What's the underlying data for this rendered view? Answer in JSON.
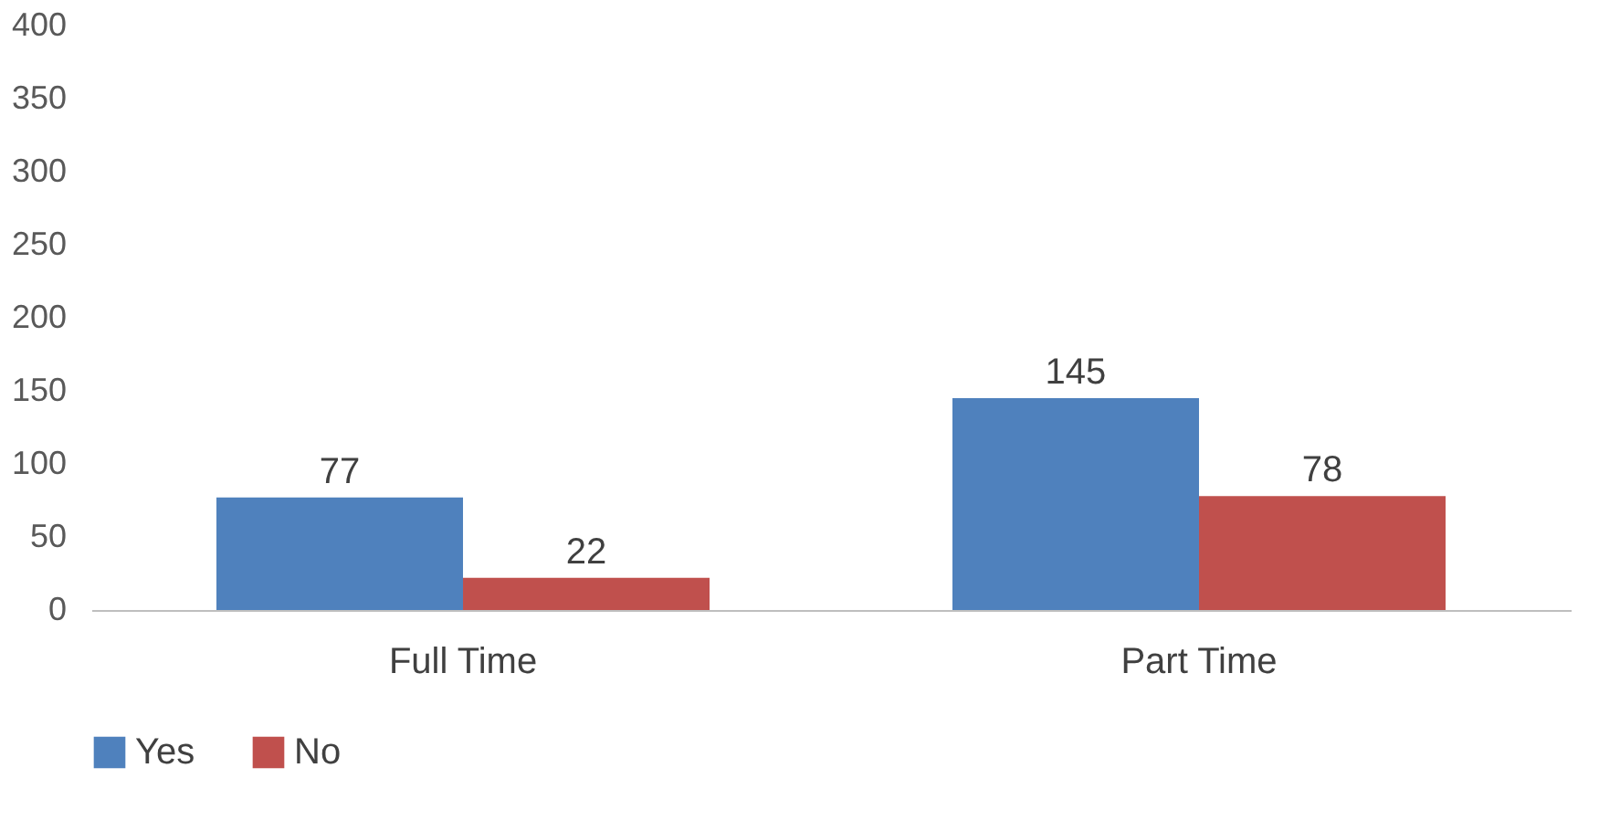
{
  "chart_data": {
    "type": "bar",
    "categories": [
      "Full Time",
      "Part Time"
    ],
    "series": [
      {
        "name": "Yes",
        "color": "#4f81bd",
        "values": [
          77,
          145
        ]
      },
      {
        "name": "No",
        "color": "#c0504d",
        "values": [
          22,
          78
        ]
      }
    ],
    "ylim": [
      0,
      400
    ],
    "yticks": [
      0,
      50,
      100,
      150,
      200,
      250,
      300,
      350,
      400
    ],
    "data_labels": true,
    "legend": "bottom"
  }
}
